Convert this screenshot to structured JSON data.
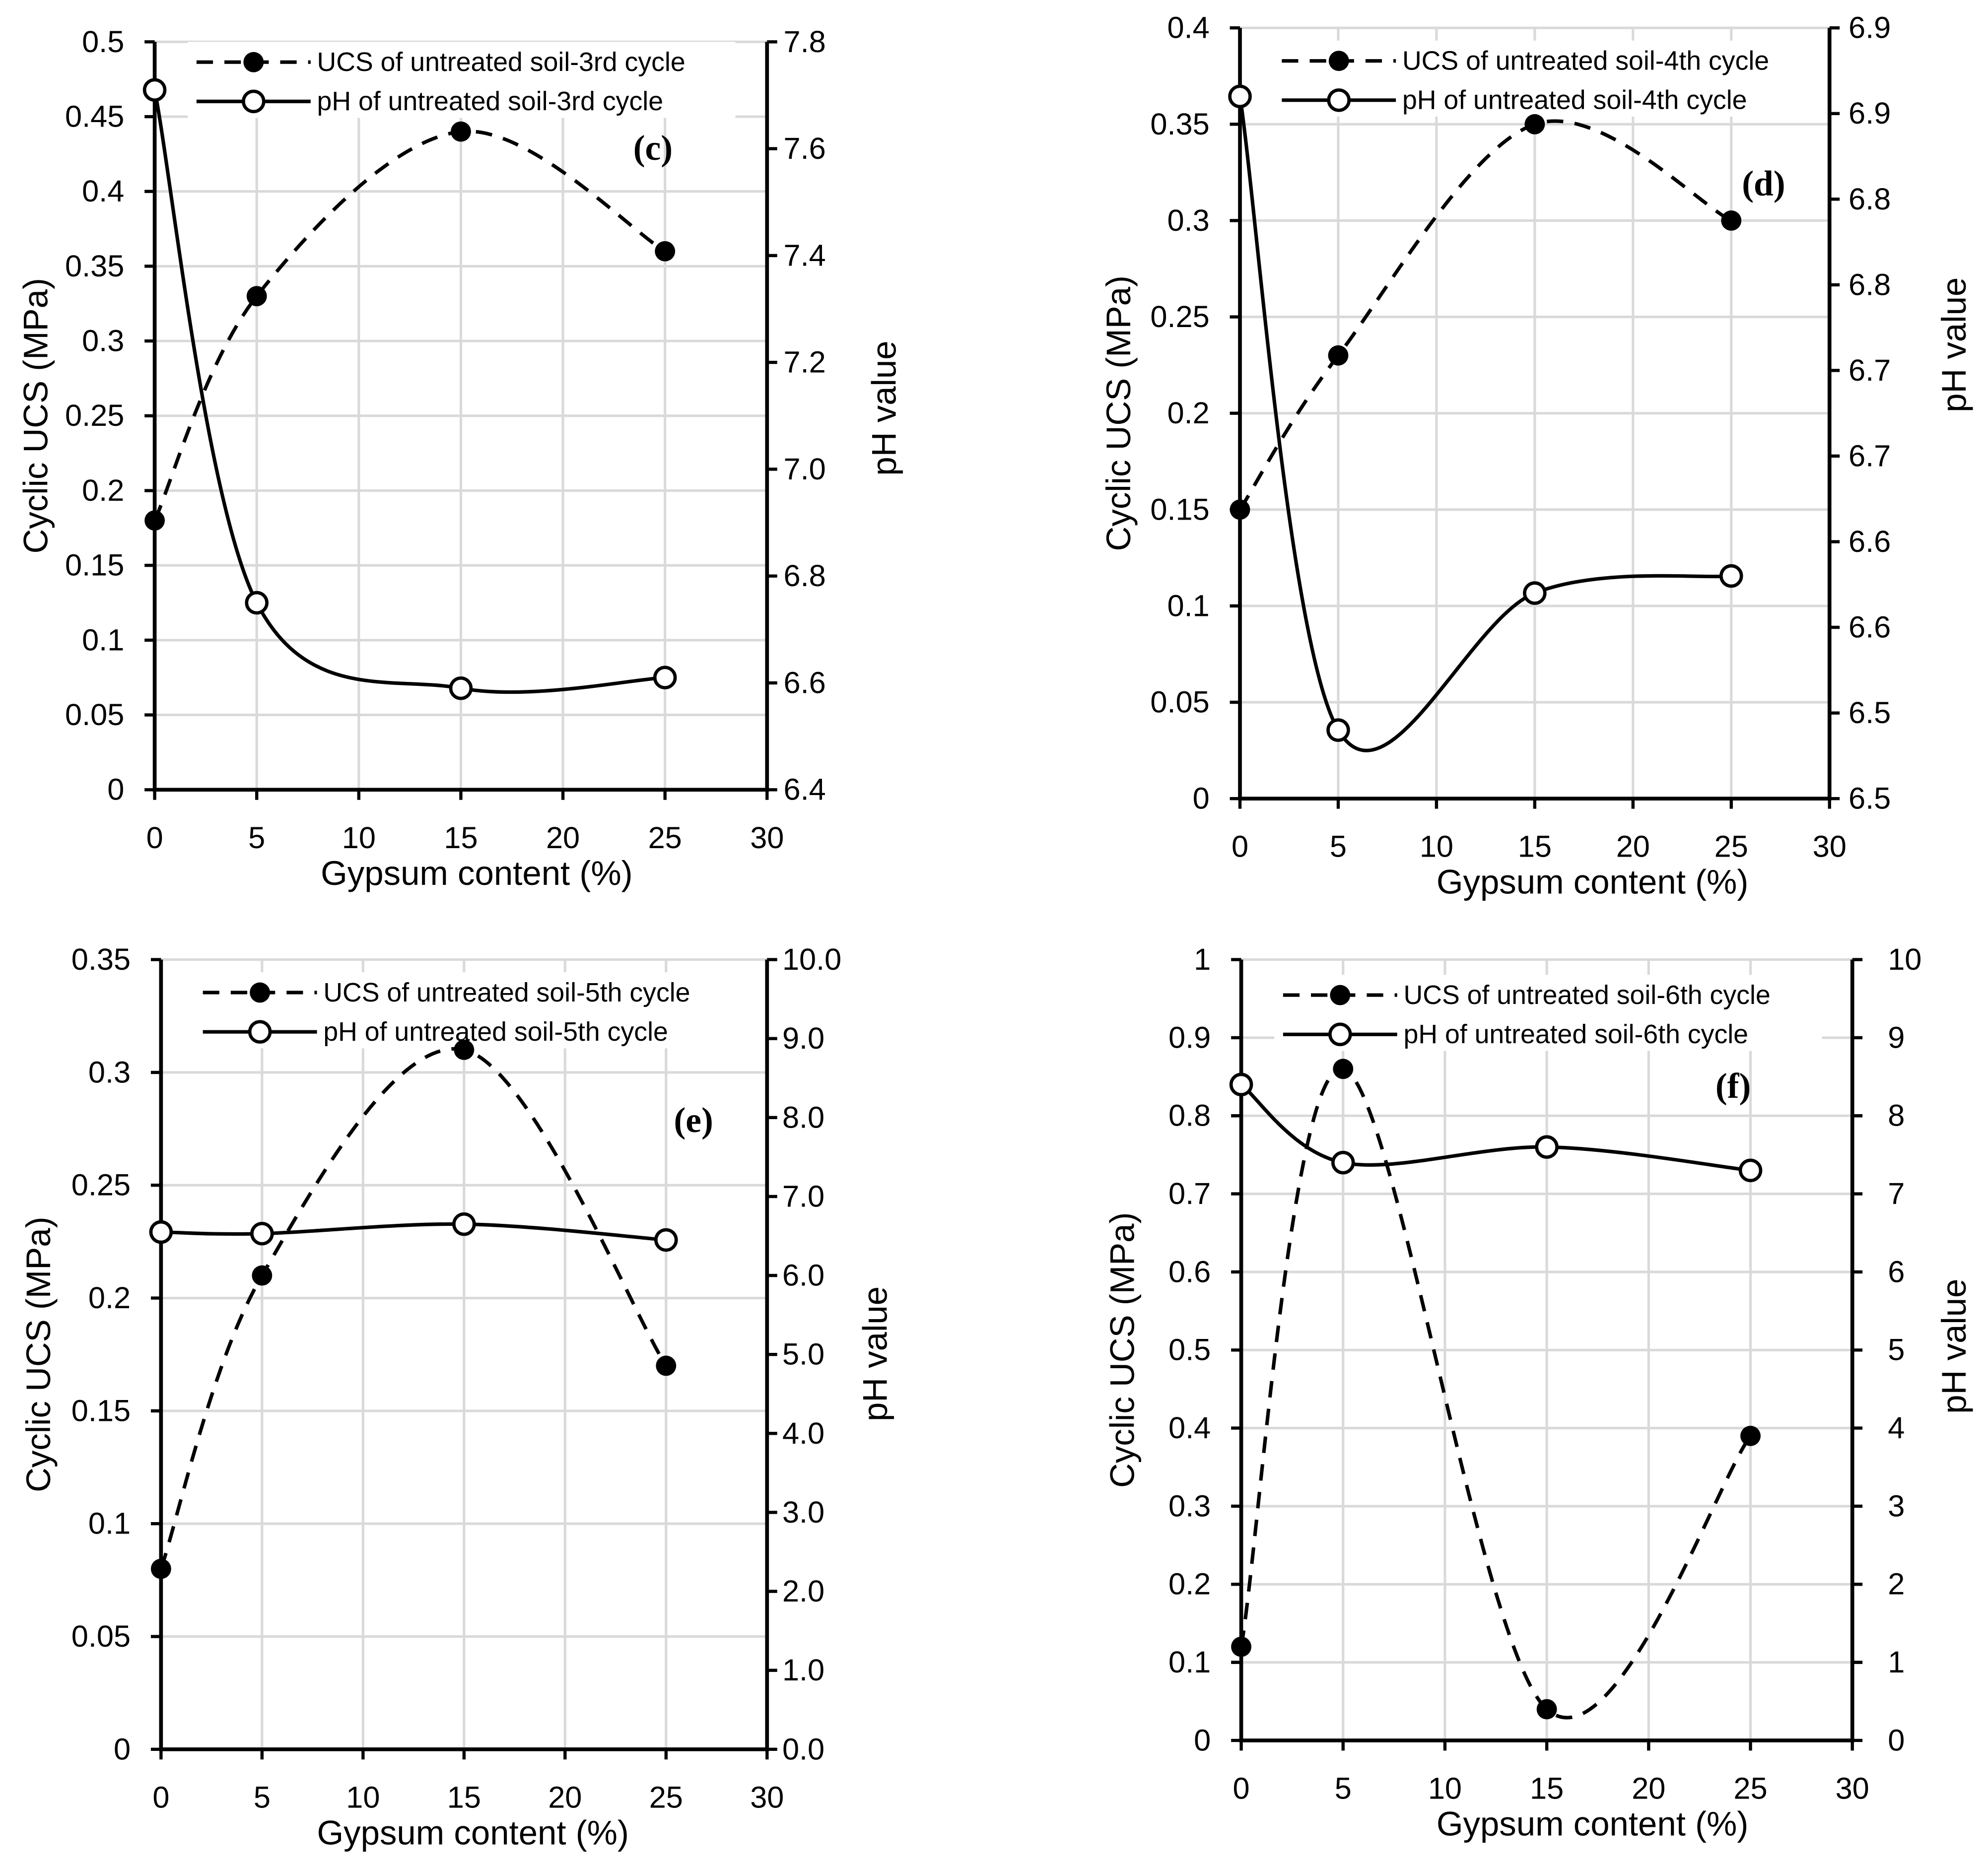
{
  "colors": {
    "ink": "#000000",
    "grid": "#d9d9d9",
    "background": "#ffffff",
    "open_marker": "#ffffff"
  },
  "chart_data": [
    {
      "panel": "(c)",
      "type": "line",
      "x": [
        0,
        5,
        15,
        25
      ],
      "series": [
        {
          "name": "UCS of untreated soil-3rd cycle",
          "values": [
            0.18,
            0.33,
            0.44,
            0.36
          ]
        },
        {
          "name": "pH of untreated soil-3rd cycle",
          "values": [
            7.71,
            6.75,
            6.59,
            6.61
          ]
        }
      ],
      "xlabel": "Gypsum content (%)",
      "ylabel": "Cyclic UCS (MPa)",
      "y2label": "pH value",
      "xlim": [
        0,
        30
      ],
      "xticks": [
        0,
        5,
        10,
        15,
        20,
        25,
        30
      ],
      "xtick_labels": [
        "0",
        "5",
        "10",
        "15",
        "20",
        "25",
        "30"
      ],
      "ylim": [
        0,
        0.5
      ],
      "yticks": [
        0,
        0.05,
        0.1,
        0.15,
        0.2,
        0.25,
        0.3,
        0.35,
        0.4,
        0.45,
        0.5
      ],
      "ytick_labels": [
        "0",
        "0.05",
        "0.1",
        "0.15",
        "0.2",
        "0.25",
        "0.3",
        "0.35",
        "0.4",
        "0.45",
        "0.5"
      ],
      "y2lim": [
        6.4,
        7.8
      ],
      "y2ticks": [
        6.4,
        6.6,
        6.8,
        7.0,
        7.2,
        7.4,
        7.6,
        7.8
      ],
      "y2tick_labels": [
        "6.4",
        "6.6",
        "6.8",
        "7.0",
        "7.2",
        "7.4",
        "7.6",
        "7.8"
      ],
      "grid": true,
      "legend": "top-left"
    },
    {
      "panel": "(d)",
      "type": "line",
      "x": [
        0,
        5,
        15,
        25
      ],
      "series": [
        {
          "name": "UCS of untreated soil-4th cycle",
          "values": [
            0.15,
            0.23,
            0.35,
            0.3
          ]
        },
        {
          "name": "pH of untreated soil-4th cycle",
          "values": [
            6.86,
            6.49,
            6.57,
            6.58
          ]
        }
      ],
      "xlabel": "Gypsum content (%)",
      "ylabel": "Cyclic UCS (MPa)",
      "y2label": "pH value",
      "xlim": [
        0,
        30
      ],
      "xticks": [
        0,
        5,
        10,
        15,
        20,
        25,
        30
      ],
      "xtick_labels": [
        "0",
        "5",
        "10",
        "15",
        "20",
        "25",
        "30"
      ],
      "ylim": [
        0,
        0.4
      ],
      "yticks": [
        0,
        0.05,
        0.1,
        0.15,
        0.2,
        0.25,
        0.3,
        0.35,
        0.4
      ],
      "ytick_labels": [
        "0",
        "0.05",
        "0.1",
        "0.15",
        "0.2",
        "0.25",
        "0.3",
        "0.35",
        "0.4"
      ],
      "y2lim": [
        6.45,
        6.9
      ],
      "y2ticks": [
        6.45,
        6.5,
        6.55,
        6.6,
        6.65,
        6.7,
        6.75,
        6.8,
        6.85,
        6.9
      ],
      "y2tick_labels": [
        "6.5",
        "6.5",
        "6.6",
        "6.6",
        "6.7",
        "6.7",
        "6.8",
        "6.8",
        "6.9",
        "6.9"
      ],
      "grid": true,
      "legend": "top-left"
    },
    {
      "panel": "(e)",
      "type": "line",
      "x": [
        0,
        5,
        15,
        25
      ],
      "series": [
        {
          "name": "UCS of untreated soil-5th cycle",
          "values": [
            0.08,
            0.21,
            0.31,
            0.17
          ]
        },
        {
          "name": "pH of untreated soil-5th cycle",
          "values": [
            6.55,
            6.53,
            6.65,
            6.45
          ]
        }
      ],
      "xlabel": "Gypsum content (%)",
      "ylabel": "Cyclic UCS (MPa)",
      "y2label": "pH value",
      "xlim": [
        0,
        30
      ],
      "xticks": [
        0,
        5,
        10,
        15,
        20,
        25,
        30
      ],
      "xtick_labels": [
        "0",
        "5",
        "10",
        "15",
        "20",
        "25",
        "30"
      ],
      "ylim": [
        0,
        0.35
      ],
      "yticks": [
        0,
        0.05,
        0.1,
        0.15,
        0.2,
        0.25,
        0.3,
        0.35
      ],
      "ytick_labels": [
        "0",
        "0.05",
        "0.1",
        "0.15",
        "0.2",
        "0.25",
        "0.3",
        "0.35"
      ],
      "y2lim": [
        0,
        10
      ],
      "y2ticks": [
        0,
        1,
        2,
        3,
        4,
        5,
        6,
        7,
        8,
        9,
        10
      ],
      "y2tick_labels": [
        "0.0",
        "1.0",
        "2.0",
        "3.0",
        "4.0",
        "5.0",
        "6.0",
        "7.0",
        "8.0",
        "9.0",
        "10.0"
      ],
      "grid": true,
      "legend": "top-left"
    },
    {
      "panel": "(f)",
      "type": "line",
      "x": [
        0,
        5,
        15,
        25
      ],
      "series": [
        {
          "name": "UCS of untreated soil-6th cycle",
          "values": [
            0.12,
            0.86,
            0.04,
            0.39
          ]
        },
        {
          "name": "pH of untreated soil-6th cycle",
          "values": [
            8.4,
            7.4,
            7.6,
            7.3
          ]
        }
      ],
      "xlabel": "Gypsum content (%)",
      "ylabel": "Cyclic UCS (MPa)",
      "y2label": "pH value",
      "xlim": [
        0,
        30
      ],
      "xticks": [
        0,
        5,
        10,
        15,
        20,
        25,
        30
      ],
      "xtick_labels": [
        "0",
        "5",
        "10",
        "15",
        "20",
        "25",
        "30"
      ],
      "ylim": [
        0,
        1
      ],
      "yticks": [
        0,
        0.1,
        0.2,
        0.3,
        0.4,
        0.5,
        0.6,
        0.7,
        0.8,
        0.9,
        1
      ],
      "ytick_labels": [
        "0",
        "0.1",
        "0.2",
        "0.3",
        "0.4",
        "0.5",
        "0.6",
        "0.7",
        "0.8",
        "0.9",
        "1"
      ],
      "y2lim": [
        0,
        10
      ],
      "y2ticks": [
        0,
        1,
        2,
        3,
        4,
        5,
        6,
        7,
        8,
        9,
        10
      ],
      "y2tick_labels": [
        "0",
        "1",
        "2",
        "3",
        "4",
        "5",
        "6",
        "7",
        "8",
        "9",
        "10"
      ],
      "grid": true,
      "legend": "top-left"
    }
  ]
}
